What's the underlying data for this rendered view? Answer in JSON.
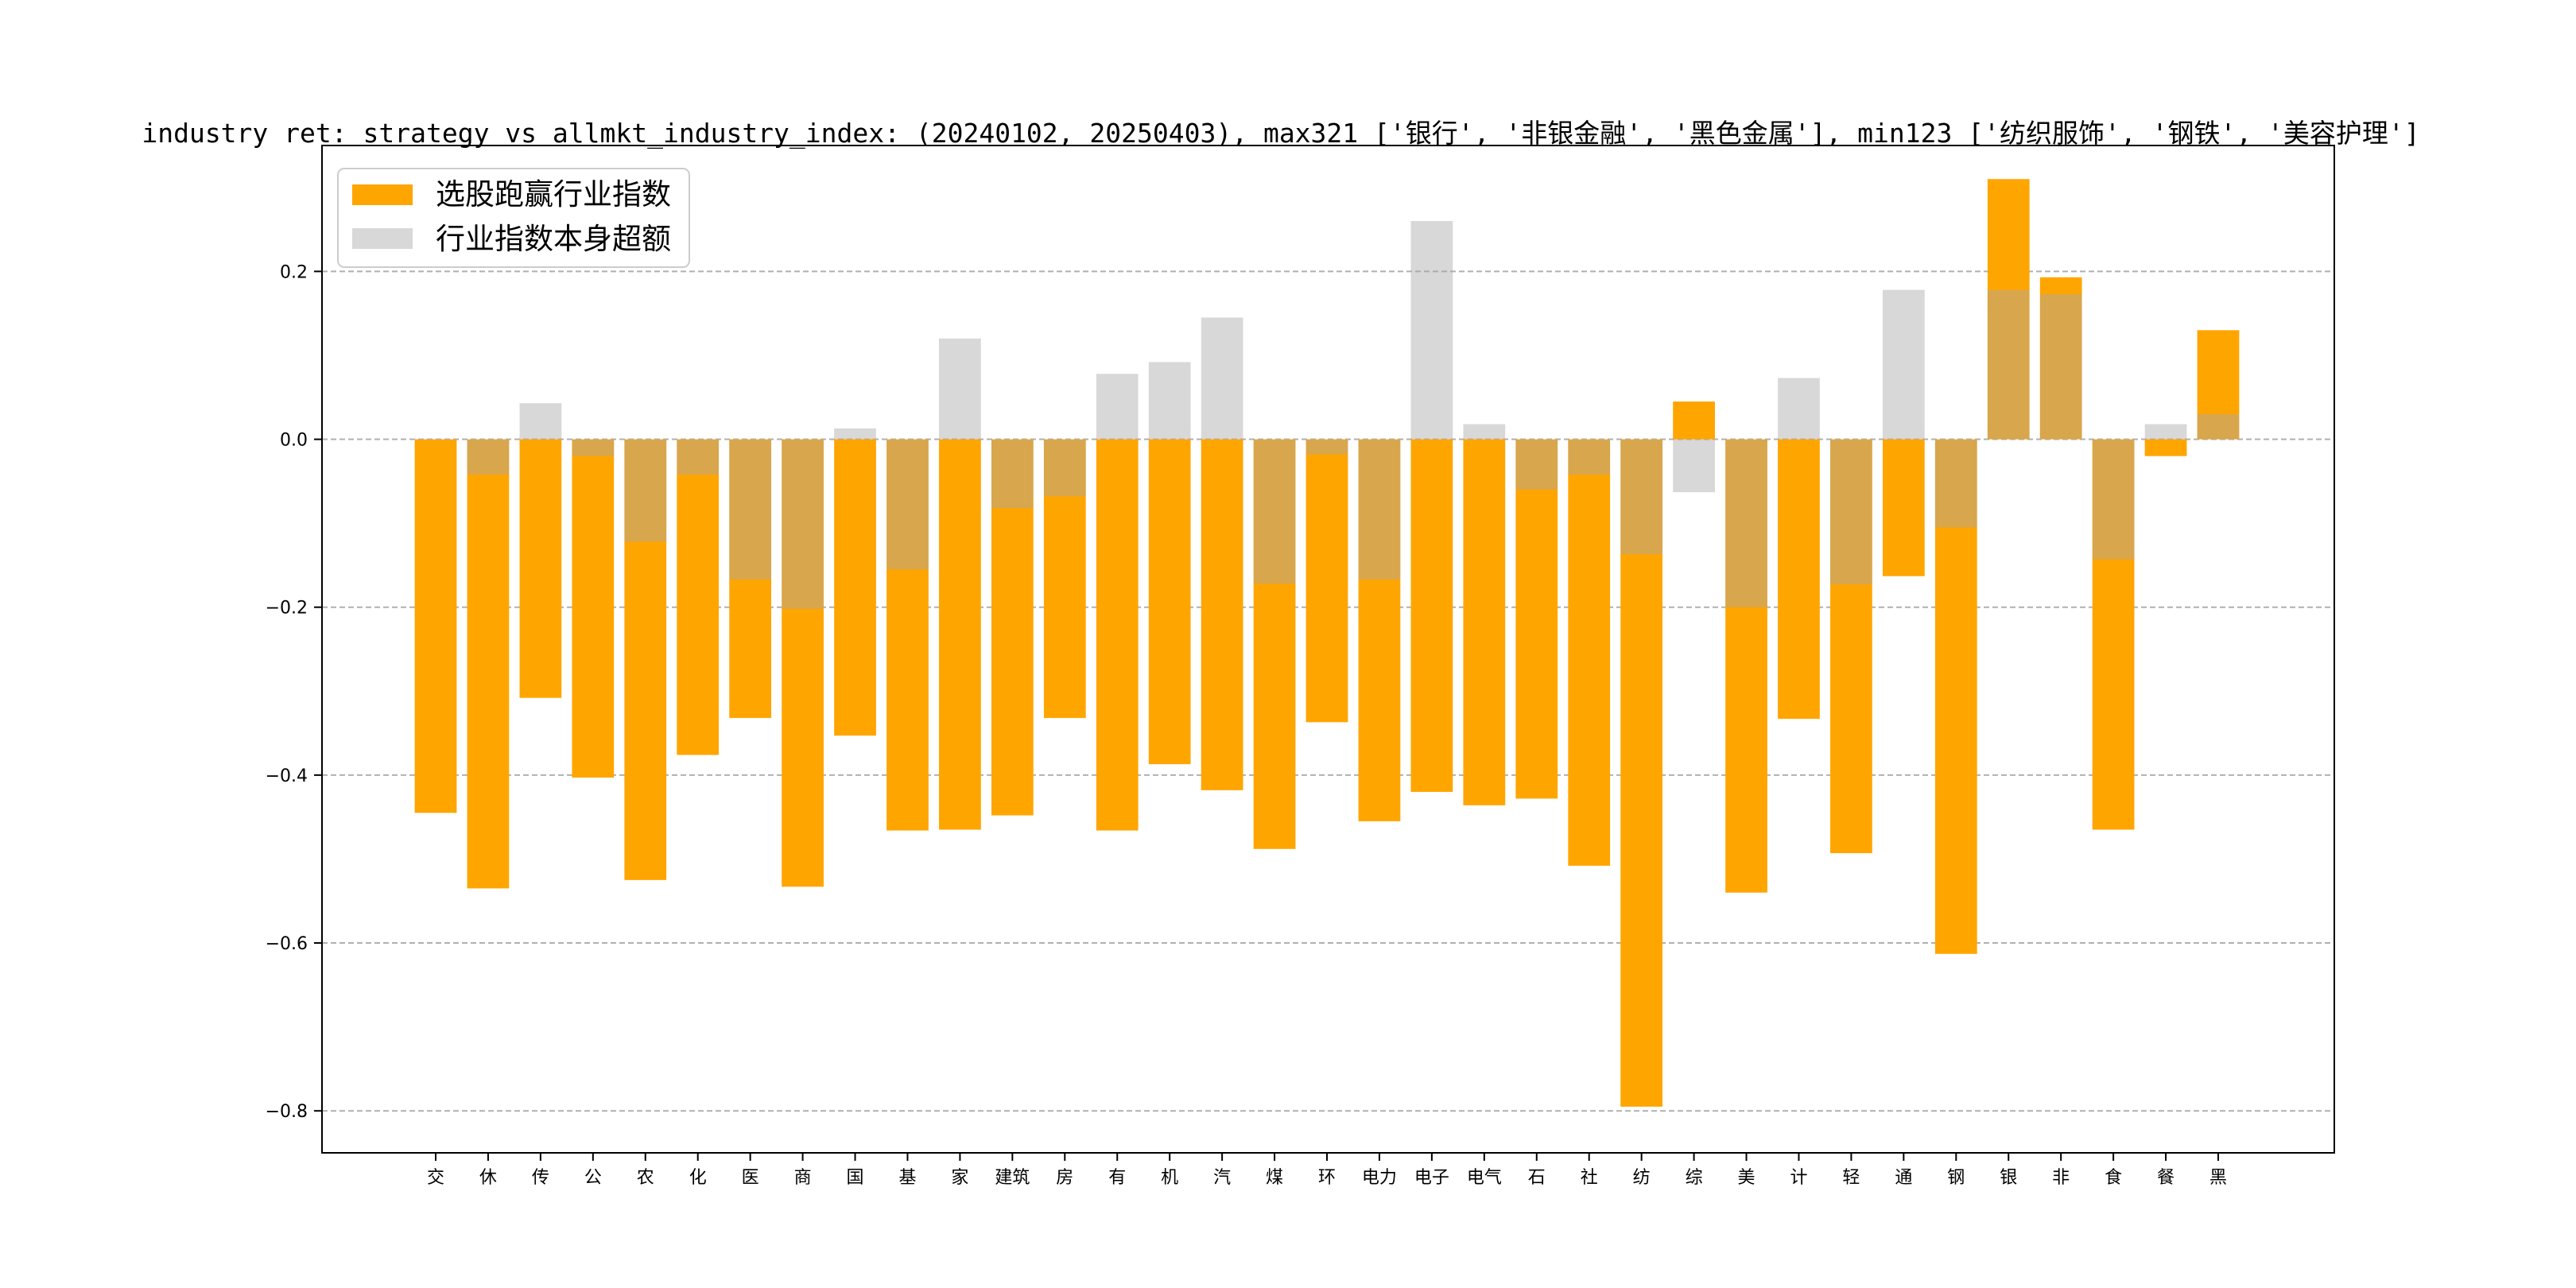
{
  "chart_data": {
    "type": "bar",
    "title": "industry ret: strategy vs allmkt_industry_index: (20240102, 20250403), max321 ['银行', '非银金融', '黑色金属'], min123 ['纺织服饰', '钢铁', '美容护理']",
    "xlabel": "",
    "ylabel": "",
    "ylim": [
      -0.85,
      0.35
    ],
    "yticks": [
      -0.8,
      -0.6,
      -0.4,
      -0.2,
      0.0,
      0.2
    ],
    "ytick_labels": [
      "−0.8",
      "−0.6",
      "−0.4",
      "−0.2",
      "0.0",
      "0.2"
    ],
    "grid": "horizontal dashed",
    "legend_position": "top-left",
    "categories": [
      "交",
      "休",
      "传",
      "公",
      "农",
      "化",
      "医",
      "商",
      "国",
      "基",
      "家",
      "建筑",
      "房",
      "有",
      "机",
      "汽",
      "煤",
      "环",
      "电力",
      "电子",
      "电气",
      "石",
      "社",
      "纺",
      "综",
      "美",
      "计",
      "轻",
      "通",
      "钢",
      "银",
      "非",
      "食",
      "餐",
      "黑"
    ],
    "series": [
      {
        "name": "选股跑赢行业指数",
        "color": "#FFA500",
        "values": [
          -0.445,
          -0.535,
          -0.308,
          -0.403,
          -0.525,
          -0.376,
          -0.332,
          -0.533,
          -0.353,
          -0.466,
          -0.465,
          -0.448,
          -0.332,
          -0.466,
          -0.387,
          -0.418,
          -0.488,
          -0.337,
          -0.455,
          -0.42,
          -0.436,
          -0.428,
          -0.508,
          -0.795,
          0.045,
          -0.54,
          -0.333,
          -0.493,
          -0.163,
          -0.613,
          0.31,
          0.193,
          -0.465,
          -0.02,
          0.13
        ]
      },
      {
        "name": "行业指数本身超额",
        "color": "#A9A9A9",
        "values": [
          0.0,
          -0.042,
          0.043,
          -0.02,
          -0.122,
          -0.042,
          -0.167,
          -0.202,
          0.013,
          -0.155,
          0.12,
          -0.082,
          -0.068,
          0.078,
          0.092,
          0.145,
          -0.172,
          -0.018,
          -0.167,
          0.26,
          0.018,
          -0.06,
          -0.042,
          -0.137,
          -0.063,
          -0.2,
          0.073,
          -0.173,
          0.178,
          -0.105,
          0.178,
          0.173,
          -0.143,
          0.018,
          0.03
        ]
      }
    ]
  }
}
